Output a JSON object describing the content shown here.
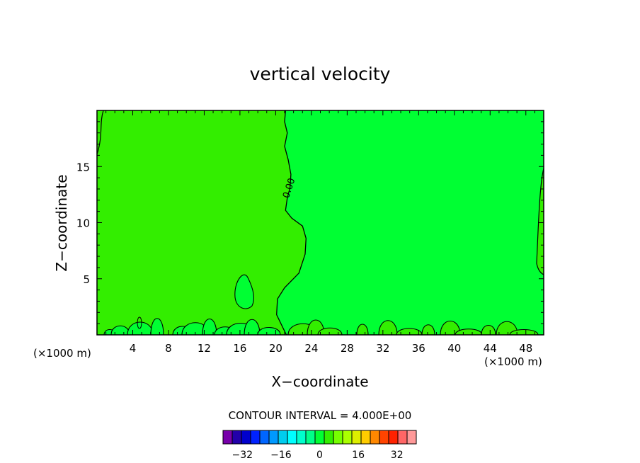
{
  "chart_data": {
    "type": "contour",
    "title": "vertical velocity",
    "xlabel": "X−coordinate",
    "ylabel": "Z−coordinate",
    "x_unit_left": "(×1000 m)",
    "x_unit_right": "(×1000 m)",
    "xlim": [
      0,
      50
    ],
    "ylim": [
      0,
      20
    ],
    "x_ticks": [
      4,
      8,
      12,
      16,
      20,
      24,
      28,
      32,
      36,
      40,
      44,
      48
    ],
    "x_tick_labels": [
      "4",
      "8",
      "12",
      "16",
      "20",
      "24",
      "28",
      "32",
      "36",
      "40",
      "44",
      "48"
    ],
    "y_ticks": [
      5,
      10,
      15
    ],
    "y_tick_labels": [
      "5",
      "10",
      "15"
    ],
    "contour_label": "0.00",
    "contour_interval_text": "CONTOUR INTERVAL = 4.000E+00",
    "regions": [
      {
        "name": "negative (-4 to 0)",
        "color": "#33ee00"
      },
      {
        "name": "positive (0 to 4)",
        "color": "#00ff33"
      }
    ],
    "zero_contour_main": [
      [
        21.2,
        0
      ],
      [
        20.1,
        1.8
      ],
      [
        20.2,
        3.2
      ],
      [
        21.0,
        4.2
      ],
      [
        22.6,
        5.5
      ],
      [
        23.3,
        7.2
      ],
      [
        23.4,
        8.6
      ],
      [
        23.0,
        9.7
      ],
      [
        21.8,
        10.4
      ],
      [
        21.1,
        11.1
      ],
      [
        21.3,
        12.2
      ],
      [
        21.6,
        13.1
      ],
      [
        21.7,
        14.3
      ],
      [
        21.4,
        15.6
      ],
      [
        21.0,
        16.8
      ],
      [
        21.3,
        18.0
      ],
      [
        21.0,
        19.0
      ],
      [
        21.1,
        20
      ]
    ],
    "colorbar": {
      "colors": [
        "#7700aa",
        "#2200aa",
        "#0000cc",
        "#0022ff",
        "#0066ff",
        "#0099ff",
        "#00ccee",
        "#00ffff",
        "#00ffcc",
        "#00ff88",
        "#00ff33",
        "#33ee00",
        "#77ff00",
        "#aaff00",
        "#ddee00",
        "#ffcc00",
        "#ff8800",
        "#ff4400",
        "#ff2200",
        "#ff6666",
        "#ff9999"
      ],
      "range": [
        -40,
        40
      ],
      "tick_values": [
        -32,
        -16,
        0,
        16,
        32
      ],
      "tick_labels": [
        "−32",
        "−16",
        "0",
        "16",
        "32"
      ]
    }
  }
}
